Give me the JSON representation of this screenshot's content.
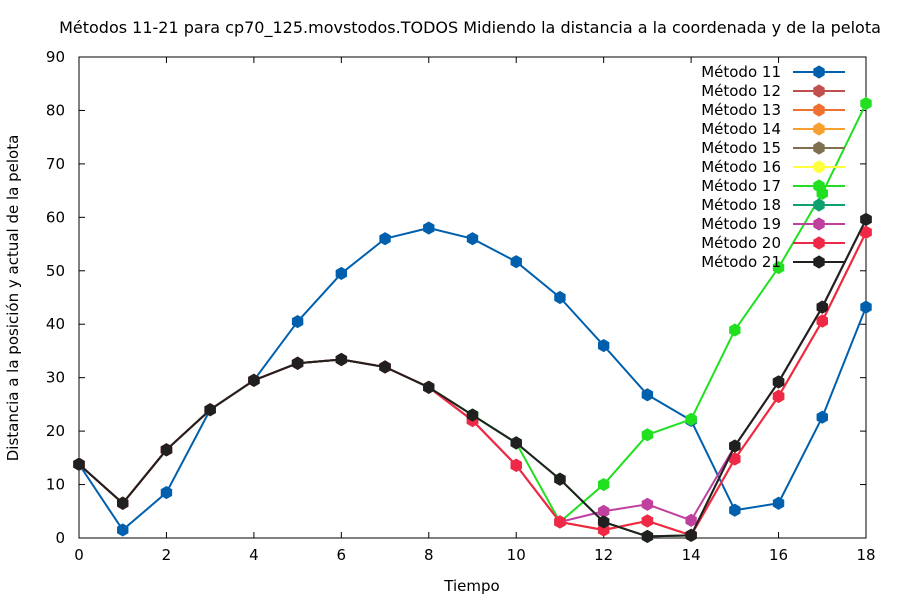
{
  "chart_data": {
    "type": "line",
    "title": "Métodos 11-21 para cp70_125.movstodos.TODOS Midiendo la distancia a la coordenada y de la pelota",
    "xlabel": "Tiempo",
    "ylabel": "Distancia a la posición y actual de la pelota",
    "xlim": [
      0,
      18
    ],
    "ylim": [
      0,
      90
    ],
    "x_ticks": [
      0,
      2,
      4,
      6,
      8,
      10,
      12,
      14,
      16,
      18
    ],
    "y_ticks": [
      0,
      10,
      20,
      30,
      40,
      50,
      60,
      70,
      80,
      90
    ],
    "grid": false,
    "legend_position": "top-right",
    "x": [
      0,
      1,
      2,
      3,
      4,
      5,
      6,
      7,
      8,
      9,
      10,
      11,
      12,
      13,
      14,
      15,
      16,
      17,
      18
    ],
    "series": [
      {
        "name": "Método 11",
        "color": "#0060ad",
        "values": [
          13.8,
          1.5,
          8.5,
          24.0,
          29.5,
          40.5,
          49.5,
          56.0,
          58.0,
          56.0,
          51.7,
          45.0,
          36.0,
          26.8,
          22.0,
          5.2,
          6.5,
          22.6,
          43.2
        ]
      },
      {
        "name": "Método 12",
        "color": "#c0504d",
        "values": [
          13.8,
          6.5,
          16.5,
          24.0,
          29.5,
          32.7,
          33.4,
          32.0,
          28.2,
          22.0,
          13.6,
          3.0,
          1.5,
          3.2,
          0.5,
          14.8,
          26.5,
          40.6,
          57.2
        ]
      },
      {
        "name": "Método 13",
        "color": "#f07030",
        "values": [
          13.8,
          6.5,
          16.5,
          24.0,
          29.5,
          32.7,
          33.4,
          32.0,
          28.2,
          22.0,
          13.6,
          3.0,
          1.5,
          3.2,
          0.5,
          14.8,
          26.5,
          40.6,
          57.2
        ]
      },
      {
        "name": "Método 14",
        "color": "#f7a030",
        "values": [
          13.8,
          6.5,
          16.5,
          24.0,
          29.5,
          32.7,
          33.4,
          32.0,
          28.2,
          22.0,
          13.6,
          3.0,
          1.5,
          3.2,
          0.5,
          14.8,
          26.5,
          40.6,
          57.2
        ]
      },
      {
        "name": "Método 15",
        "color": "#7f7050",
        "values": [
          13.8,
          6.5,
          16.5,
          24.0,
          29.5,
          32.7,
          33.4,
          32.0,
          28.2,
          23.0,
          17.8,
          11.0,
          3.0,
          0.3,
          0.5,
          17.2,
          29.2,
          43.2,
          59.6
        ]
      },
      {
        "name": "Método 16",
        "color": "#ffff40",
        "values": [
          13.8,
          6.5,
          16.5,
          24.0,
          29.5,
          32.7,
          33.4,
          32.0,
          28.2,
          23.0,
          17.8,
          11.0,
          3.0,
          0.3,
          0.5,
          17.2,
          29.2,
          43.2,
          59.6
        ]
      },
      {
        "name": "Método 17",
        "color": "#20e020",
        "values": [
          13.8,
          6.5,
          16.5,
          24.0,
          29.5,
          32.7,
          33.4,
          32.0,
          28.2,
          23.0,
          17.8,
          3.0,
          10.0,
          19.3,
          22.2,
          38.9,
          50.6,
          64.5,
          81.3
        ]
      },
      {
        "name": "Método 18",
        "color": "#10a070",
        "values": [
          13.8,
          6.5,
          16.5,
          24.0,
          29.5,
          32.7,
          33.4,
          32.0,
          28.2,
          23.0,
          17.8,
          11.0,
          3.0,
          0.3,
          0.5,
          17.2,
          29.2,
          43.2,
          59.6
        ]
      },
      {
        "name": "Método 19",
        "color": "#c040a0",
        "values": [
          13.8,
          6.5,
          16.5,
          24.0,
          29.5,
          32.7,
          33.4,
          32.0,
          28.2,
          22.0,
          13.6,
          3.0,
          5.0,
          6.3,
          3.3,
          17.2,
          29.2,
          43.2,
          59.6
        ]
      },
      {
        "name": "Método 20",
        "color": "#f02848",
        "values": [
          13.8,
          6.5,
          16.5,
          24.0,
          29.5,
          32.7,
          33.4,
          32.0,
          28.2,
          22.0,
          13.6,
          3.0,
          1.5,
          3.2,
          0.5,
          14.8,
          26.5,
          40.6,
          57.2
        ]
      },
      {
        "name": "Método 21",
        "color": "#202020",
        "values": [
          13.8,
          6.5,
          16.5,
          24.0,
          29.5,
          32.7,
          33.4,
          32.0,
          28.2,
          23.0,
          17.8,
          11.0,
          3.0,
          0.3,
          0.5,
          17.2,
          29.2,
          43.2,
          59.6
        ]
      }
    ]
  }
}
